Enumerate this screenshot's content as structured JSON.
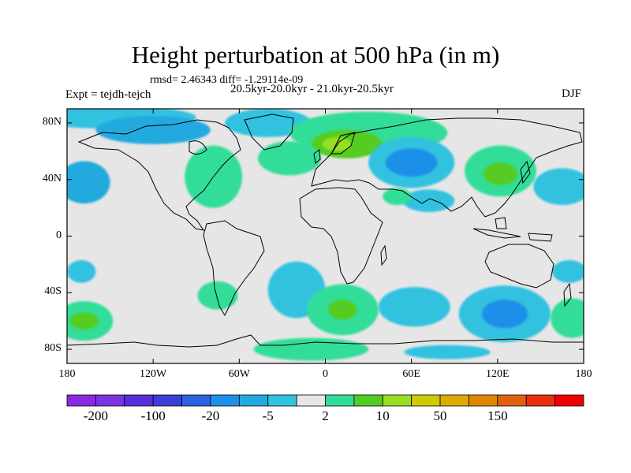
{
  "header": {
    "title": "Height perturbation at 500 hPa (in m)",
    "stats": "rmsd= 2.46343 diff= -1.29114e-09",
    "experiment": "Expt = tejdh-tejch",
    "period": "20.5kyr-20.0kyr - 21.0kyr-20.5kyr",
    "season": "DJF"
  },
  "axes": {
    "y_ticks": [
      {
        "lat": 80,
        "label": "80N"
      },
      {
        "lat": 40,
        "label": "40N"
      },
      {
        "lat": 0,
        "label": "0"
      },
      {
        "lat": -40,
        "label": "40S"
      },
      {
        "lat": -80,
        "label": "80S"
      }
    ],
    "x_ticks": [
      {
        "lon": -180,
        "label": "180"
      },
      {
        "lon": -120,
        "label": "120W"
      },
      {
        "lon": -60,
        "label": "60W"
      },
      {
        "lon": 0,
        "label": "0"
      },
      {
        "lon": 60,
        "label": "60E"
      },
      {
        "lon": 120,
        "label": "120E"
      },
      {
        "lon": 180,
        "label": "180"
      }
    ]
  },
  "colorbar": {
    "colors": [
      "#8a2be2",
      "#7a34e0",
      "#5a2ed8",
      "#3a3fd8",
      "#2a62e0",
      "#1e90e8",
      "#22aadf",
      "#33c2e0",
      "#e6e6e6",
      "#33dd99",
      "#55cc22",
      "#99dd22",
      "#cccc00",
      "#ddaa00",
      "#dd8800",
      "#e06010",
      "#e83010",
      "#ee0000"
    ],
    "labels": [
      {
        "after_index": 0,
        "text": "-200"
      },
      {
        "after_index": 2,
        "text": "-100"
      },
      {
        "after_index": 4,
        "text": "-20"
      },
      {
        "after_index": 6,
        "text": "-5"
      },
      {
        "after_index": 8,
        "text": "2"
      },
      {
        "after_index": 10,
        "text": "10"
      },
      {
        "after_index": 12,
        "text": "50"
      },
      {
        "after_index": 14,
        "text": "150"
      }
    ]
  },
  "field": {
    "background": "#e6e6e6",
    "blobs": [
      {
        "lon": -150,
        "lat": 84,
        "rlon": 60,
        "rlat": 8,
        "color": "#33c2e0"
      },
      {
        "lon": -120,
        "lat": 75,
        "rlon": 40,
        "rlat": 10,
        "color": "#22aadf"
      },
      {
        "lon": -40,
        "lat": 80,
        "rlon": 30,
        "rlat": 10,
        "color": "#33c2e0"
      },
      {
        "lon": 30,
        "lat": 73,
        "rlon": 55,
        "rlat": 15,
        "color": "#33dd99"
      },
      {
        "lon": 15,
        "lat": 65,
        "rlon": 25,
        "rlat": 10,
        "color": "#55cc22"
      },
      {
        "lon": 8,
        "lat": 65,
        "rlon": 10,
        "rlat": 5,
        "color": "#99dd22"
      },
      {
        "lon": -25,
        "lat": 55,
        "rlon": 22,
        "rlat": 12,
        "color": "#33dd99"
      },
      {
        "lon": -78,
        "lat": 42,
        "rlon": 20,
        "rlat": 22,
        "color": "#33dd99"
      },
      {
        "lon": 60,
        "lat": 52,
        "rlon": 30,
        "rlat": 18,
        "color": "#33c2e0"
      },
      {
        "lon": 60,
        "lat": 52,
        "rlon": 18,
        "rlat": 10,
        "color": "#1e90e8"
      },
      {
        "lon": 122,
        "lat": 46,
        "rlon": 25,
        "rlat": 18,
        "color": "#33dd99"
      },
      {
        "lon": 122,
        "lat": 44,
        "rlon": 12,
        "rlat": 8,
        "color": "#55cc22"
      },
      {
        "lon": -168,
        "lat": 38,
        "rlon": 18,
        "rlat": 15,
        "color": "#22aadf"
      },
      {
        "lon": 165,
        "lat": 35,
        "rlon": 20,
        "rlat": 13,
        "color": "#33c2e0"
      },
      {
        "lon": 72,
        "lat": 25,
        "rlon": 18,
        "rlat": 8,
        "color": "#33c2e0"
      },
      {
        "lon": 50,
        "lat": 28,
        "rlon": 10,
        "rlat": 6,
        "color": "#33dd99"
      },
      {
        "lon": -20,
        "lat": -38,
        "rlon": 20,
        "rlat": 20,
        "color": "#33c2e0"
      },
      {
        "lon": -75,
        "lat": -42,
        "rlon": 14,
        "rlat": 10,
        "color": "#33dd99"
      },
      {
        "lon": -168,
        "lat": -60,
        "rlon": 20,
        "rlat": 14,
        "color": "#33dd99"
      },
      {
        "lon": -168,
        "lat": -60,
        "rlon": 10,
        "rlat": 6,
        "color": "#55cc22"
      },
      {
        "lon": 12,
        "lat": -52,
        "rlon": 25,
        "rlat": 18,
        "color": "#33dd99"
      },
      {
        "lon": 12,
        "lat": -52,
        "rlon": 10,
        "rlat": 7,
        "color": "#55cc22"
      },
      {
        "lon": 62,
        "lat": -50,
        "rlon": 25,
        "rlat": 14,
        "color": "#33c2e0"
      },
      {
        "lon": 125,
        "lat": -55,
        "rlon": 32,
        "rlat": 20,
        "color": "#33c2e0"
      },
      {
        "lon": 125,
        "lat": -55,
        "rlon": 16,
        "rlat": 10,
        "color": "#1e90e8"
      },
      {
        "lon": 172,
        "lat": -58,
        "rlon": 15,
        "rlat": 14,
        "color": "#33dd99"
      },
      {
        "lon": 170,
        "lat": -25,
        "rlon": 12,
        "rlat": 8,
        "color": "#33c2e0"
      },
      {
        "lon": -170,
        "lat": -25,
        "rlon": 10,
        "rlat": 8,
        "color": "#33c2e0"
      },
      {
        "lon": -10,
        "lat": -80,
        "rlon": 40,
        "rlat": 8,
        "color": "#33dd99"
      },
      {
        "lon": 85,
        "lat": -82,
        "rlon": 30,
        "rlat": 5,
        "color": "#33c2e0"
      }
    ]
  }
}
